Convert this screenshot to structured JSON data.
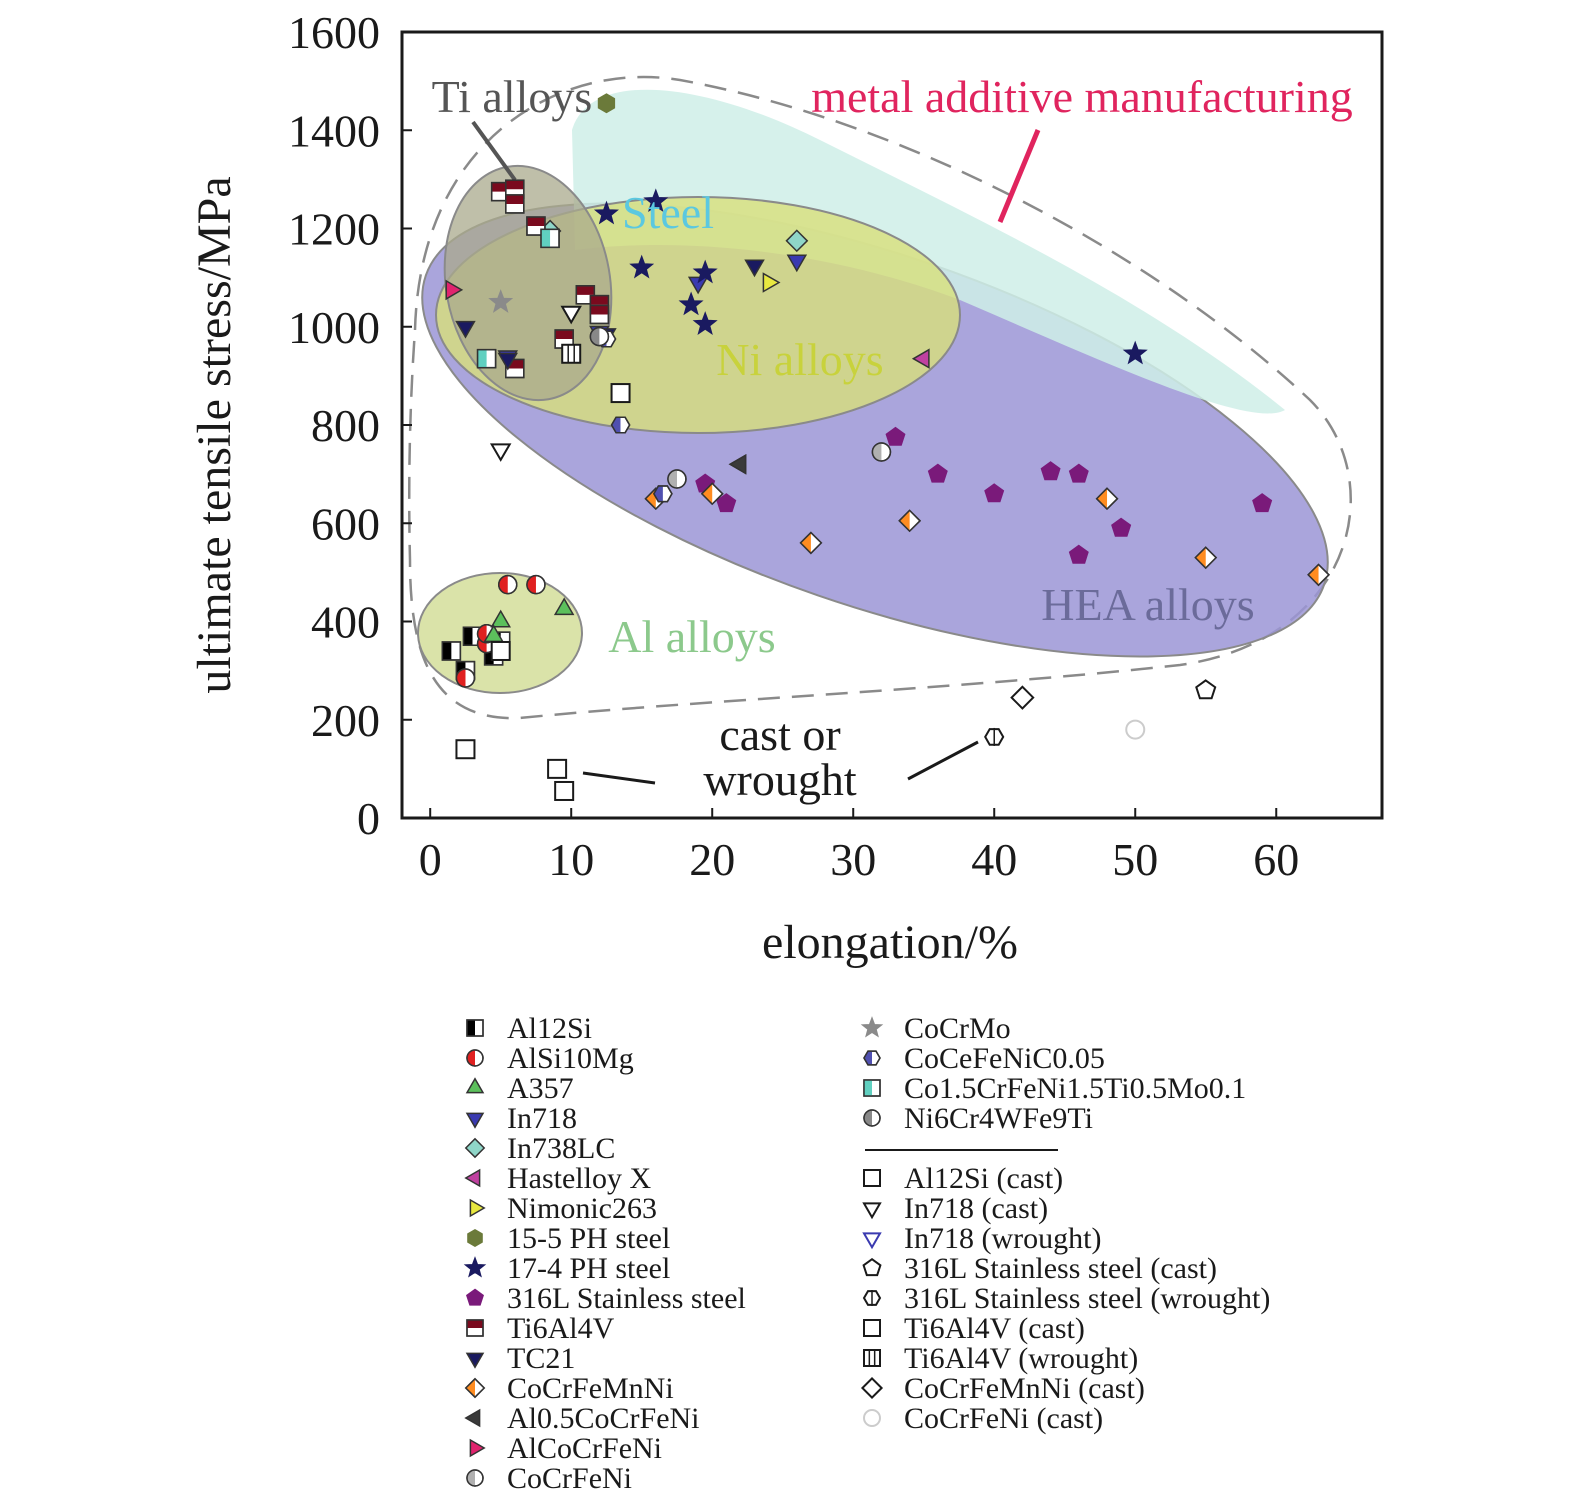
{
  "chart_data": {
    "type": "scatter",
    "xlabel": "elongation/%",
    "ylabel": "ultimate tensile stress/MPa",
    "xlim": [
      -2,
      67.5
    ],
    "ylim": [
      0,
      1600
    ],
    "x_ticks": [
      0,
      10,
      20,
      30,
      40,
      50,
      60
    ],
    "y_ticks": [
      0,
      200,
      400,
      600,
      800,
      1000,
      1200,
      1400,
      1600
    ],
    "annotations": [
      {
        "text": "metal additive manufacturing",
        "color": "#e0245e"
      },
      {
        "text": "Ti alloys",
        "color": "#555555"
      },
      {
        "text": "Steel",
        "color": "#5bc8e0"
      },
      {
        "text": "Ni alloys",
        "color": "#c8d23c"
      },
      {
        "text": "HEA alloys",
        "color": "#6b6b9a"
      },
      {
        "text": "Al alloys",
        "color": "#8cc98c"
      },
      {
        "text": "cast or wrought",
        "color": "#1a1a1a"
      }
    ],
    "regions": [
      {
        "name": "metal additive manufacturing envelope",
        "style": "dashed"
      },
      {
        "name": "HEA alloys",
        "color": "#a09ad8"
      },
      {
        "name": "Steel",
        "color": "#cfeee8"
      },
      {
        "name": "Ni alloys",
        "color": "#d8e07a"
      },
      {
        "name": "Ti alloys",
        "color": "#a9a98c"
      },
      {
        "name": "Al alloys",
        "color": "#d6e0a0"
      }
    ],
    "series": [
      {
        "name": "Al12Si",
        "marker": "square-half",
        "color": "#000000",
        "points": [
          [
            1.5,
            340
          ],
          [
            3,
            370
          ],
          [
            2.5,
            300
          ],
          [
            4.5,
            330
          ],
          [
            5,
            360
          ]
        ]
      },
      {
        "name": "AlSi10Mg",
        "marker": "circle-half",
        "color": "#e02020",
        "points": [
          [
            5.5,
            475
          ],
          [
            7.5,
            475
          ],
          [
            4,
            355
          ],
          [
            2.5,
            285
          ],
          [
            4,
            375
          ]
        ]
      },
      {
        "name": "A357",
        "marker": "triangle-up",
        "color": "#5cc05c",
        "points": [
          [
            9.5,
            425
          ],
          [
            5,
            400
          ],
          [
            4.5,
            370
          ]
        ]
      },
      {
        "name": "In718",
        "marker": "triangle-down",
        "color": "#3a3ab0",
        "points": [
          [
            19,
            1090
          ],
          [
            26,
            1135
          ],
          [
            12,
            990
          ],
          [
            5.5,
            940
          ]
        ]
      },
      {
        "name": "In738LC",
        "marker": "diamond",
        "color": "#8fd6c8",
        "points": [
          [
            8.5,
            1195
          ],
          [
            26,
            1175
          ]
        ]
      },
      {
        "name": "Hastelloy X",
        "marker": "triangle-left",
        "color": "#c040a0",
        "points": [
          [
            35,
            935
          ],
          [
            22,
            720
          ]
        ]
      },
      {
        "name": "Nimonic263",
        "marker": "triangle-right",
        "color": "#e8e840",
        "points": [
          [
            24,
            1090
          ]
        ]
      },
      {
        "name": "15-5 PH steel",
        "marker": "hexagon",
        "color": "#6b7a3a",
        "points": [
          [
            12.5,
            1455
          ]
        ]
      },
      {
        "name": "17-4 PH steel",
        "marker": "star",
        "color": "#1a1a60",
        "points": [
          [
            16,
            1255
          ],
          [
            12.5,
            1230
          ],
          [
            15,
            1120
          ],
          [
            19.5,
            1110
          ],
          [
            18.5,
            1045
          ],
          [
            19.5,
            1005
          ],
          [
            50,
            945
          ]
        ]
      },
      {
        "name": "316L Stainless steel",
        "marker": "pentagon",
        "color": "#7a1a7a",
        "points": [
          [
            33,
            775
          ],
          [
            36,
            700
          ],
          [
            40,
            660
          ],
          [
            44,
            705
          ],
          [
            46,
            700
          ],
          [
            49,
            590
          ],
          [
            46,
            535
          ],
          [
            59,
            640
          ],
          [
            21,
            640
          ],
          [
            19.5,
            680
          ]
        ]
      },
      {
        "name": "Ti6Al4V",
        "marker": "square-half-horizontal",
        "color": "#7a0a1e",
        "points": [
          [
            5,
            1275
          ],
          [
            6,
            1280
          ],
          [
            6,
            1250
          ],
          [
            7.5,
            1205
          ],
          [
            11,
            1065
          ],
          [
            12,
            1045
          ],
          [
            12,
            1025
          ],
          [
            9.5,
            975
          ],
          [
            6,
            915
          ]
        ]
      },
      {
        "name": "TC21",
        "marker": "triangle-down",
        "color": "#1a1a60",
        "points": [
          [
            2.5,
            1000
          ],
          [
            5.5,
            935
          ],
          [
            12.5,
            985
          ],
          [
            23,
            1125
          ]
        ]
      },
      {
        "name": "CoCrFeMnNi",
        "marker": "diamond-half",
        "color": "#ff8c20",
        "points": [
          [
            16,
            650
          ],
          [
            20,
            660
          ],
          [
            27,
            560
          ],
          [
            34,
            605
          ],
          [
            48,
            650
          ],
          [
            55,
            530
          ],
          [
            63,
            495
          ]
        ]
      },
      {
        "name": "Al0.5CoCrFeNi",
        "marker": "triangle-left",
        "color": "#3a3a3a",
        "points": [
          [
            22,
            720
          ]
        ]
      },
      {
        "name": "AlCoCrFeNi",
        "marker": "triangle-right",
        "color": "#e0246e",
        "points": [
          [
            1.5,
            1075
          ]
        ]
      },
      {
        "name": "CoCrFeNi",
        "marker": "circle-half",
        "color": "#b0b0b0",
        "points": [
          [
            17.5,
            690
          ],
          [
            32,
            745
          ]
        ]
      },
      {
        "name": "CoCrMo",
        "marker": "star",
        "color": "#8a8a8a",
        "points": [
          [
            5,
            1050
          ]
        ]
      },
      {
        "name": "CoCeFeNiC0.05",
        "marker": "hexagon-half",
        "color": "#5050b0",
        "points": [
          [
            13.5,
            800
          ],
          [
            12.5,
            975
          ],
          [
            16.5,
            660
          ]
        ]
      },
      {
        "name": "Co1.5CrFeNi1.5Ti0.5Mo0.1",
        "marker": "square-half",
        "color": "#60d0c0",
        "points": [
          [
            4,
            935
          ],
          [
            8.5,
            1180
          ]
        ]
      },
      {
        "name": "Ni6Cr4WFe9Ti",
        "marker": "circle-half",
        "color": "#888888",
        "points": [
          [
            12,
            980
          ]
        ]
      },
      {
        "name": "Al12Si (cast)",
        "marker": "open-square",
        "color": "#1a1a1a",
        "points": [
          [
            2.5,
            140
          ],
          [
            9,
            100
          ],
          [
            9.5,
            55
          ],
          [
            13.5,
            865
          ]
        ]
      },
      {
        "name": "In718 (cast)",
        "marker": "open-triangle-down",
        "color": "#1a1a1a",
        "points": [
          [
            5,
            750
          ],
          [
            10,
            1030
          ]
        ]
      },
      {
        "name": "In718 (wrought)",
        "marker": "open-triangle-down",
        "color": "#3a3ab0",
        "points": []
      },
      {
        "name": "316L Stainless steel (cast)",
        "marker": "open-pentagon",
        "color": "#1a1a1a",
        "points": [
          [
            55,
            260
          ]
        ]
      },
      {
        "name": "316L Stainless steel (wrought)",
        "marker": "open-hexagon",
        "color": "#1a1a1a",
        "points": [
          [
            40,
            165
          ]
        ]
      },
      {
        "name": "Ti6Al4V (cast)",
        "marker": "open-square",
        "color": "#1a1a1a",
        "points": [
          [
            5,
            340
          ]
        ]
      },
      {
        "name": "Ti6Al4V (wrought)",
        "marker": "open-square-grid",
        "color": "#1a1a1a",
        "points": [
          [
            10,
            945
          ]
        ]
      },
      {
        "name": "CoCrFeMnNi (cast)",
        "marker": "open-diamond",
        "color": "#1a1a1a",
        "points": [
          [
            42,
            245
          ]
        ]
      },
      {
        "name": "CoCrFeNi (cast)",
        "marker": "open-circle",
        "color": "#cccccc",
        "points": [
          [
            50,
            180
          ]
        ]
      }
    ],
    "legend": {
      "left": [
        "Al12Si",
        "AlSi10Mg",
        "A357",
        "In718",
        "In738LC",
        "Hastelloy X",
        "Nimonic263",
        "15-5 PH steel",
        "17-4 PH steel",
        "316L Stainless steel",
        "Ti6Al4V",
        "TC21",
        "CoCrFeMnNi",
        "Al0.5CoCrFeNi",
        "AlCoCrFeNi",
        "CoCrFeNi"
      ],
      "right_top": [
        "CoCrMo",
        "CoCeFeNiC0.05",
        "Co1.5CrFeNi1.5Ti0.5Mo0.1",
        "Ni6Cr4WFe9Ti"
      ],
      "right_bottom": [
        "Al12Si (cast)",
        "In718 (cast)",
        "In718 (wrought)",
        "316L Stainless steel (cast)",
        "316L Stainless steel (wrought)",
        "Ti6Al4V (cast)",
        "Ti6Al4V (wrought)",
        "CoCrFeMnNi (cast)",
        "CoCrFeNi (cast)"
      ]
    }
  }
}
